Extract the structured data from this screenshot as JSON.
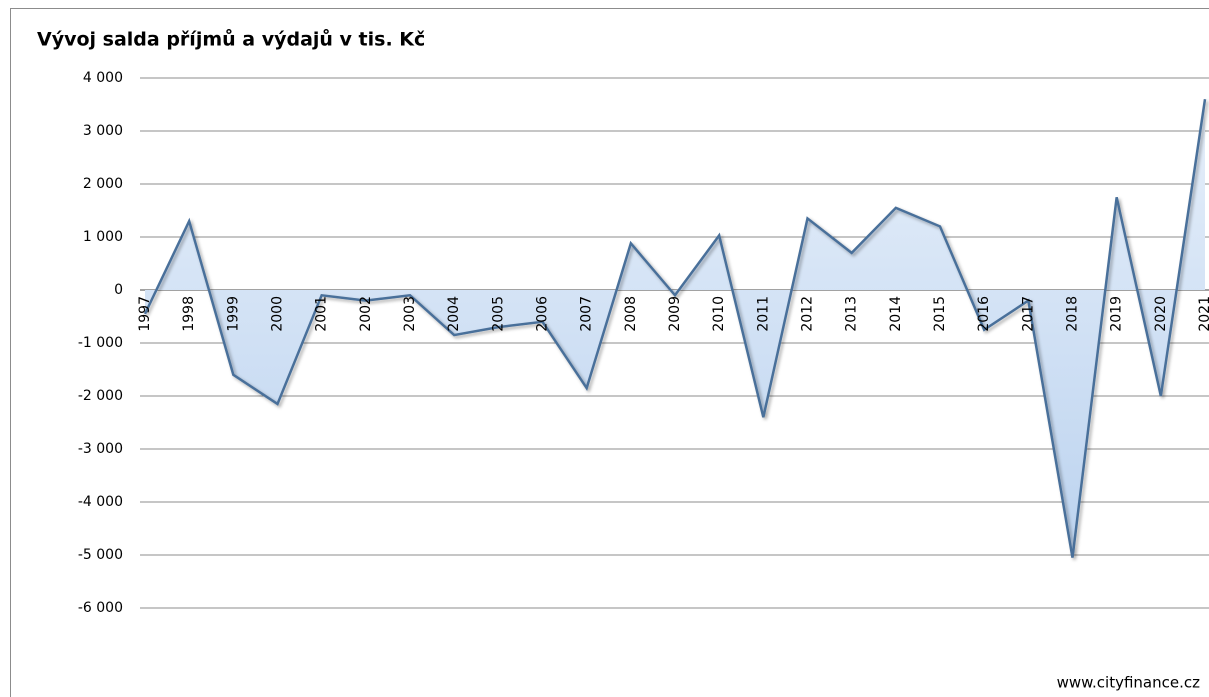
{
  "chart_data": {
    "type": "area",
    "title": "Vývoj salda příjmů a výdajů v tis. Kč",
    "source": "www.cityfinance.cz",
    "categories": [
      "1997",
      "1998",
      "1999",
      "2000",
      "2001",
      "2002",
      "2003",
      "2004",
      "2005",
      "2006",
      "2007",
      "2008",
      "2009",
      "2010",
      "2011",
      "2012",
      "2013",
      "2014",
      "2015",
      "2016",
      "2017",
      "2018",
      "2019",
      "2020",
      "2021"
    ],
    "values": [
      -450,
      1300,
      -1600,
      -2150,
      -100,
      -200,
      -100,
      -850,
      -700,
      -600,
      -1850,
      880,
      -100,
      1030,
      -2400,
      1350,
      700,
      1550,
      1200,
      -750,
      -200,
      -5050,
      1750,
      -2000,
      3600
    ],
    "color": "#4a6f9a",
    "fill": "#cfe0f5",
    "ylim": [
      -6000,
      4000
    ],
    "yticks": [
      {
        "value": -6000,
        "label": "-6 000"
      },
      {
        "value": -5000,
        "label": "-5 000"
      },
      {
        "value": -4000,
        "label": "-4 000"
      },
      {
        "value": -3000,
        "label": "-3 000"
      },
      {
        "value": -2000,
        "label": "-2 000"
      },
      {
        "value": -1000,
        "label": "-1 000"
      },
      0,
      {
        "value": 1000,
        "label": "1 000"
      },
      {
        "value": 2000,
        "label": "2 000"
      },
      {
        "value": 3000,
        "label": "3 000"
      },
      {
        "value": 4000,
        "label": "4 000"
      }
    ],
    "grid": true
  }
}
